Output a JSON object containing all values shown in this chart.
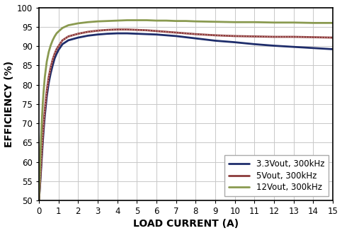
{
  "title": "",
  "xlabel": "LOAD CURRENT (A)",
  "ylabel": "EFFICIENCY (%)",
  "xlim": [
    0,
    15
  ],
  "ylim": [
    50,
    100
  ],
  "xticks": [
    0,
    1,
    2,
    3,
    4,
    5,
    6,
    7,
    8,
    9,
    10,
    11,
    12,
    13,
    14,
    15
  ],
  "yticks": [
    50,
    55,
    60,
    65,
    70,
    75,
    80,
    85,
    90,
    95,
    100
  ],
  "series": [
    {
      "label": "3.3Vout, 300kHz",
      "color": "#1e2d6b",
      "linewidth": 2.0,
      "linestyle": "solid",
      "x": [
        0.0,
        0.05,
        0.1,
        0.15,
        0.2,
        0.25,
        0.3,
        0.4,
        0.5,
        0.6,
        0.7,
        0.8,
        0.9,
        1.0,
        1.2,
        1.5,
        2.0,
        2.5,
        3.0,
        3.5,
        4.0,
        4.5,
        5.0,
        5.5,
        6.0,
        6.5,
        7.0,
        7.5,
        8.0,
        9.0,
        10.0,
        11.0,
        12.0,
        13.0,
        14.0,
        15.0
      ],
      "y": [
        50.0,
        53.5,
        57.5,
        61.5,
        65.5,
        69.0,
        72.0,
        77.0,
        80.5,
        83.0,
        85.0,
        86.8,
        88.0,
        89.0,
        90.5,
        91.5,
        92.2,
        92.7,
        93.0,
        93.2,
        93.3,
        93.3,
        93.2,
        93.1,
        93.0,
        92.8,
        92.6,
        92.3,
        92.0,
        91.4,
        91.0,
        90.5,
        90.1,
        89.8,
        89.5,
        89.2
      ]
    },
    {
      "label": "5Vout, 300kHz",
      "color": "#8b3a3a",
      "linewidth": 2.0,
      "linestyle": "solid",
      "dotted_overlay": true,
      "x": [
        0.0,
        0.05,
        0.1,
        0.15,
        0.2,
        0.25,
        0.3,
        0.4,
        0.5,
        0.6,
        0.7,
        0.8,
        0.9,
        1.0,
        1.2,
        1.5,
        2.0,
        2.5,
        3.0,
        3.5,
        4.0,
        4.5,
        5.0,
        5.5,
        6.0,
        6.5,
        7.0,
        7.5,
        8.0,
        9.0,
        10.0,
        11.0,
        12.0,
        13.0,
        14.0,
        15.0
      ],
      "y": [
        50.0,
        54.0,
        58.5,
        63.0,
        67.0,
        70.5,
        73.5,
        78.5,
        82.0,
        84.5,
        86.5,
        88.0,
        89.2,
        90.0,
        91.5,
        92.5,
        93.2,
        93.7,
        94.0,
        94.2,
        94.3,
        94.3,
        94.2,
        94.1,
        93.9,
        93.7,
        93.5,
        93.3,
        93.1,
        92.8,
        92.6,
        92.5,
        92.4,
        92.4,
        92.3,
        92.2
      ]
    },
    {
      "label": "12Vout, 300kHz",
      "color": "#8a9a50",
      "linewidth": 2.0,
      "linestyle": "solid",
      "x": [
        0.0,
        0.05,
        0.1,
        0.15,
        0.2,
        0.25,
        0.3,
        0.4,
        0.5,
        0.6,
        0.7,
        0.8,
        0.9,
        1.0,
        1.2,
        1.5,
        2.0,
        2.5,
        3.0,
        3.5,
        4.0,
        4.5,
        5.0,
        5.5,
        6.0,
        6.5,
        7.0,
        7.5,
        8.0,
        9.0,
        10.0,
        11.0,
        12.0,
        13.0,
        14.0,
        15.0
      ],
      "y": [
        50.0,
        58.0,
        65.0,
        71.0,
        75.5,
        79.0,
        82.0,
        86.0,
        88.5,
        90.2,
        91.5,
        92.5,
        93.3,
        93.8,
        94.7,
        95.4,
        95.9,
        96.2,
        96.4,
        96.5,
        96.6,
        96.7,
        96.7,
        96.7,
        96.6,
        96.6,
        96.5,
        96.5,
        96.4,
        96.3,
        96.2,
        96.2,
        96.1,
        96.1,
        96.0,
        96.0
      ]
    }
  ],
  "grid_color": "#c8c8c8",
  "background_color": "#ffffff",
  "font_size_labels": 10,
  "font_size_ticks": 8.5,
  "font_size_legend": 8.5
}
